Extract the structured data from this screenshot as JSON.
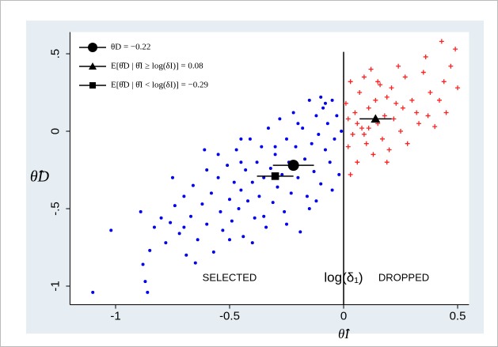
{
  "chart_data": {
    "type": "scatter",
    "x_label": "θ̂I",
    "y_label": "θ̂D",
    "xlim": [
      -1.2,
      0.55
    ],
    "ylim": [
      -1.12,
      0.64
    ],
    "xticks": [
      -1,
      -0.5,
      0,
      0.5
    ],
    "yticks": [
      {
        "value": -1,
        "label": "-1"
      },
      {
        "value": -0.5,
        "label": "-.5"
      },
      {
        "value": 0,
        "label": "0"
      },
      {
        "value": 0.5,
        "label": ".5"
      }
    ],
    "vline": 0,
    "annotations": [
      "SELECTED",
      "log(δ₁)",
      "DROPPED"
    ],
    "series": [
      {
        "name": "SELECTED",
        "color": "#0000ee",
        "marker": "dot",
        "x": [
          -1.1,
          -1.02,
          -0.89,
          -0.88,
          -0.87,
          -0.86,
          -0.85,
          -0.83,
          -0.8,
          -0.78,
          -0.76,
          -0.74,
          -0.72,
          -0.7,
          -0.69,
          -0.67,
          -0.66,
          -0.64,
          -0.62,
          -0.61,
          -0.6,
          -0.58,
          -0.57,
          -0.55,
          -0.54,
          -0.53,
          -0.51,
          -0.5,
          -0.49,
          -0.48,
          -0.47,
          -0.46,
          -0.45,
          -0.44,
          -0.43,
          -0.42,
          -0.41,
          -0.4,
          -0.39,
          -0.38,
          -0.37,
          -0.36,
          -0.35,
          -0.34,
          -0.33,
          -0.32,
          -0.31,
          -0.3,
          -0.29,
          -0.28,
          -0.27,
          -0.26,
          -0.25,
          -0.24,
          -0.23,
          -0.22,
          -0.21,
          -0.2,
          -0.19,
          -0.18,
          -0.17,
          -0.16,
          -0.15,
          -0.14,
          -0.13,
          -0.12,
          -0.11,
          -0.1,
          -0.09,
          -0.08,
          -0.07,
          -0.06,
          -0.05,
          -0.04,
          -0.03,
          -0.02,
          -0.01,
          -0.55,
          -0.45,
          -0.35,
          -0.25,
          -0.15,
          -0.65,
          -0.75,
          -0.3,
          -0.2,
          -0.1,
          -0.6,
          -0.5,
          -0.4,
          -0.7,
          -0.45,
          -0.12,
          -0.08,
          -0.05
        ],
        "values": [
          -1.04,
          -0.64,
          -0.52,
          -0.86,
          -0.97,
          -1.04,
          -0.77,
          -0.62,
          -0.56,
          -0.72,
          -0.59,
          -0.48,
          -0.66,
          -0.42,
          -0.8,
          -0.55,
          -0.35,
          -0.7,
          -0.47,
          -0.12,
          -0.6,
          -0.4,
          -0.78,
          -0.3,
          -0.52,
          -0.64,
          -0.22,
          -0.44,
          -0.58,
          -0.33,
          -0.12,
          -0.5,
          -0.38,
          -0.68,
          -0.25,
          -0.45,
          -0.05,
          -0.33,
          -0.56,
          -0.2,
          -0.42,
          -0.1,
          -0.3,
          -0.62,
          0.02,
          -0.24,
          -0.46,
          -0.15,
          -0.36,
          0.08,
          -0.28,
          -0.52,
          -0.05,
          -0.2,
          -0.4,
          0.12,
          -0.1,
          -0.3,
          -0.65,
          0.02,
          -0.18,
          -0.42,
          0.2,
          -0.08,
          -0.26,
          0.1,
          -0.02,
          -0.34,
          0.15,
          -0.12,
          0.05,
          -0.2,
          0.2,
          -0.05,
          0.1,
          -0.28,
          0.0,
          -0.15,
          -0.2,
          -0.55,
          -0.6,
          -0.5,
          -0.85,
          -0.3,
          -0.1,
          0.05,
          0.22,
          -0.25,
          -0.7,
          -0.72,
          -0.62,
          -0.05,
          -0.45,
          0.18,
          -0.38
        ]
      },
      {
        "name": "DROPPED",
        "color": "#ff2020",
        "marker": "plus",
        "x": [
          0.01,
          0.02,
          0.03,
          0.04,
          0.05,
          0.06,
          0.07,
          0.08,
          0.09,
          0.1,
          0.11,
          0.12,
          0.13,
          0.14,
          0.15,
          0.16,
          0.17,
          0.18,
          0.19,
          0.2,
          0.21,
          0.22,
          0.23,
          0.25,
          0.26,
          0.27,
          0.28,
          0.3,
          0.32,
          0.33,
          0.35,
          0.37,
          0.38,
          0.4,
          0.42,
          0.43,
          0.45,
          0.47,
          0.49,
          0.5,
          0.03,
          0.06,
          0.09,
          0.15,
          0.24,
          0.36,
          0.44,
          0.02,
          0.11,
          0.19
        ],
        "values": [
          0.18,
          -0.1,
          0.32,
          -0.02,
          0.12,
          -0.2,
          0.25,
          0.02,
          0.35,
          -0.08,
          0.15,
          0.4,
          -0.15,
          0.2,
          0.05,
          0.3,
          -0.05,
          0.1,
          0.22,
          -0.12,
          0.28,
          0.08,
          0.18,
          0.0,
          0.15,
          0.35,
          -0.08,
          0.2,
          0.12,
          0.05,
          0.38,
          0.1,
          0.25,
          0.03,
          0.2,
          0.58,
          0.12,
          0.42,
          0.53,
          0.28,
          -0.28,
          0.05,
          -0.02,
          0.32,
          0.42,
          0.48,
          0.32,
          0.08,
          0.02,
          -0.2
        ]
      },
      {
        "name": "θD = −0.22",
        "color": "#000000",
        "marker": "circle",
        "x": [
          -0.22
        ],
        "xerr": [
          0.09
        ],
        "values": [
          -0.22
        ]
      },
      {
        "name": "E[θ̂D | θ̂I ≥ log(δI)] = 0.08",
        "color": "#000000",
        "marker": "triangle",
        "x": [
          0.14
        ],
        "xerr": [
          0.07
        ],
        "values": [
          0.08
        ]
      },
      {
        "name": "E[θ̂D | θ̂I < log(δI)] = −0.29",
        "color": "#000000",
        "marker": "square",
        "x": [
          -0.3
        ],
        "xerr": [
          0.08
        ],
        "values": [
          -0.29
        ]
      }
    ]
  }
}
